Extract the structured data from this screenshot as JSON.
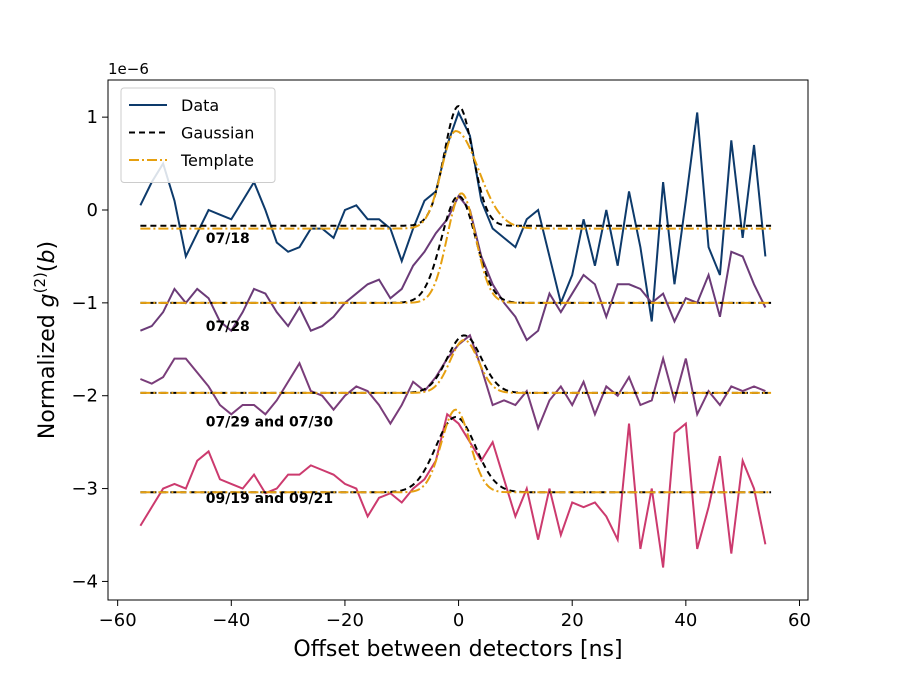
{
  "chart_data": {
    "type": "line",
    "xlabel": "Offset between detectors [ns]",
    "ylabel": [
      "Normalized ",
      "g",
      "(2)",
      "(",
      "b",
      ")"
    ],
    "y_offset_label": "1e−6",
    "xlim": [
      -61.7,
      61.5
    ],
    "ylim": [
      -4.2,
      1.4
    ],
    "xticks": [
      {
        "value": -60,
        "label": "−60"
      },
      {
        "value": -40,
        "label": "−40"
      },
      {
        "value": -20,
        "label": "−20"
      },
      0,
      20,
      40,
      60
    ],
    "yticks": [
      1,
      0,
      {
        "value": -1,
        "label": "−1"
      },
      {
        "value": -2,
        "label": "−2"
      },
      {
        "value": -3,
        "label": "−3"
      },
      {
        "value": -4,
        "label": "−4"
      }
    ],
    "legend": "upper left",
    "x": [
      -56,
      -54,
      -52,
      -50,
      -48,
      -46,
      -44,
      -42,
      -40,
      -38,
      -36,
      -34,
      -32,
      -30,
      -28,
      -26,
      -24,
      -22,
      -20,
      -18,
      -16,
      -14,
      -12,
      -10,
      -8,
      -6,
      -4,
      -2,
      0,
      2,
      4,
      6,
      8,
      10,
      12,
      14,
      16,
      18,
      20,
      22,
      24,
      26,
      28,
      30,
      32,
      34,
      36,
      38,
      40,
      42,
      44,
      46,
      48,
      50,
      52,
      54
    ],
    "series": [
      {
        "name": "Data",
        "color": "#0d3a6b",
        "values": [
          0.05,
          0.3,
          0.5,
          0.1,
          -0.5,
          -0.25,
          0.0,
          -0.05,
          -0.1,
          0.1,
          0.3,
          0.0,
          -0.35,
          -0.45,
          -0.4,
          -0.2,
          -0.2,
          -0.3,
          0.0,
          0.05,
          -0.1,
          -0.1,
          -0.2,
          -0.55,
          -0.2,
          0.1,
          0.2,
          0.7,
          1.05,
          0.8,
          0.1,
          -0.2,
          -0.3,
          -0.4,
          -0.1,
          0.0,
          -0.5,
          -1.0,
          -0.7,
          -0.1,
          -0.6,
          0.0,
          -0.6,
          0.2,
          -0.4,
          -1.2,
          0.3,
          -0.8,
          0.1,
          1.05,
          -0.4,
          -0.7,
          0.75,
          -0.3,
          0.7,
          -0.5
        ]
      },
      {
        "color": "#6b3b78",
        "values": [
          -1.3,
          -1.25,
          -1.1,
          -0.85,
          -1.0,
          -0.85,
          -0.95,
          -1.2,
          -1.3,
          -1.1,
          -0.85,
          -0.9,
          -1.1,
          -1.25,
          -1.05,
          -1.3,
          -1.25,
          -1.15,
          -1.0,
          -0.9,
          -0.8,
          -0.75,
          -0.95,
          -0.85,
          -0.6,
          -0.45,
          -0.25,
          -0.1,
          0.15,
          0.0,
          -0.5,
          -0.8,
          -1.0,
          -1.15,
          -1.4,
          -1.3,
          -0.9,
          -1.1,
          -0.9,
          -0.7,
          -0.8,
          -1.15,
          -0.8,
          -0.8,
          -0.85,
          -1.0,
          -0.9,
          -1.2,
          -0.95,
          -1.0,
          -0.7,
          -1.15,
          -0.45,
          -0.5,
          -0.8,
          -1.05
        ]
      },
      {
        "color": "#7a3d7a",
        "values": [
          -1.82,
          -1.87,
          -1.8,
          -1.6,
          -1.6,
          -1.75,
          -1.9,
          -2.1,
          -2.2,
          -2.1,
          -2.1,
          -2.2,
          -2.05,
          -1.85,
          -1.65,
          -1.95,
          -2.0,
          -2.15,
          -2.0,
          -1.9,
          -1.95,
          -2.1,
          -2.3,
          -2.1,
          -1.85,
          -1.95,
          -1.8,
          -1.6,
          -1.45,
          -1.35,
          -1.7,
          -2.1,
          -2.05,
          -2.1,
          -1.95,
          -2.35,
          -2.05,
          -1.9,
          -2.1,
          -1.85,
          -2.2,
          -1.9,
          -2.0,
          -1.8,
          -2.1,
          -2.05,
          -1.6,
          -2.05,
          -1.6,
          -2.2,
          -1.95,
          -2.1,
          -1.9,
          -1.95,
          -1.9,
          -1.95
        ]
      },
      {
        "color": "#cc3a6e",
        "values": [
          -3.4,
          -3.2,
          -3.0,
          -2.95,
          -3.0,
          -2.7,
          -2.6,
          -2.9,
          -2.95,
          -3.0,
          -2.85,
          -3.05,
          -3.0,
          -2.85,
          -2.85,
          -2.75,
          -2.8,
          -2.85,
          -2.95,
          -3.0,
          -3.3,
          -3.1,
          -3.05,
          -3.15,
          -3.0,
          -2.9,
          -2.7,
          -2.2,
          -2.3,
          -2.5,
          -2.7,
          -2.5,
          -2.9,
          -3.3,
          -3.0,
          -3.55,
          -3.0,
          -3.5,
          -3.15,
          -3.2,
          -3.15,
          -3.3,
          -3.55,
          -2.3,
          -3.65,
          -3.0,
          -3.85,
          -2.4,
          -2.3,
          -3.65,
          -3.2,
          -2.65,
          -3.7,
          -2.7,
          -3.0,
          -3.6
        ]
      }
    ],
    "fits": [
      {
        "name": "Gaussian",
        "color": "#000000",
        "curves": [
          {
            "baseline": -0.17,
            "peak": 1.12,
            "center": 0,
            "sigma": 2.5
          },
          {
            "baseline": -1.0,
            "peak": 0.15,
            "center": 0,
            "sigma": 3
          },
          {
            "baseline": -1.97,
            "peak": -1.35,
            "center": 1,
            "sigma": 3
          },
          {
            "baseline": -3.04,
            "peak": -2.23,
            "center": -0.5,
            "sigma": 3.5
          }
        ]
      },
      {
        "name": "Template",
        "color": "#e6a010",
        "curves": [
          {
            "baseline": -0.2,
            "peak": 0.85,
            "center": -0.5,
            "sigma_left": 2.5,
            "sigma_right": 4
          },
          {
            "baseline": -1.0,
            "peak": 0.18,
            "center": 0.5,
            "sigma_left": 2.5,
            "sigma_right": 2.5
          },
          {
            "baseline": -1.97,
            "peak": -1.4,
            "center": 1,
            "sigma_left": 2.5,
            "sigma_right": 2.5
          },
          {
            "baseline": -3.04,
            "peak": -2.15,
            "center": -0.5,
            "sigma_left": 2.5,
            "sigma_right": 2.5
          }
        ]
      }
    ],
    "fit_range": [
      -56,
      55
    ],
    "annotations": [
      {
        "text": "07/18",
        "x": -44.5,
        "y": -0.3
      },
      {
        "text": "07/28",
        "x": -44.5,
        "y": -1.25
      },
      {
        "text": "07/29 and 07/30",
        "x": -44.5,
        "y": -2.28
      },
      {
        "text": "09/19 and 09/21",
        "x": -44.5,
        "y": -3.1
      }
    ]
  }
}
